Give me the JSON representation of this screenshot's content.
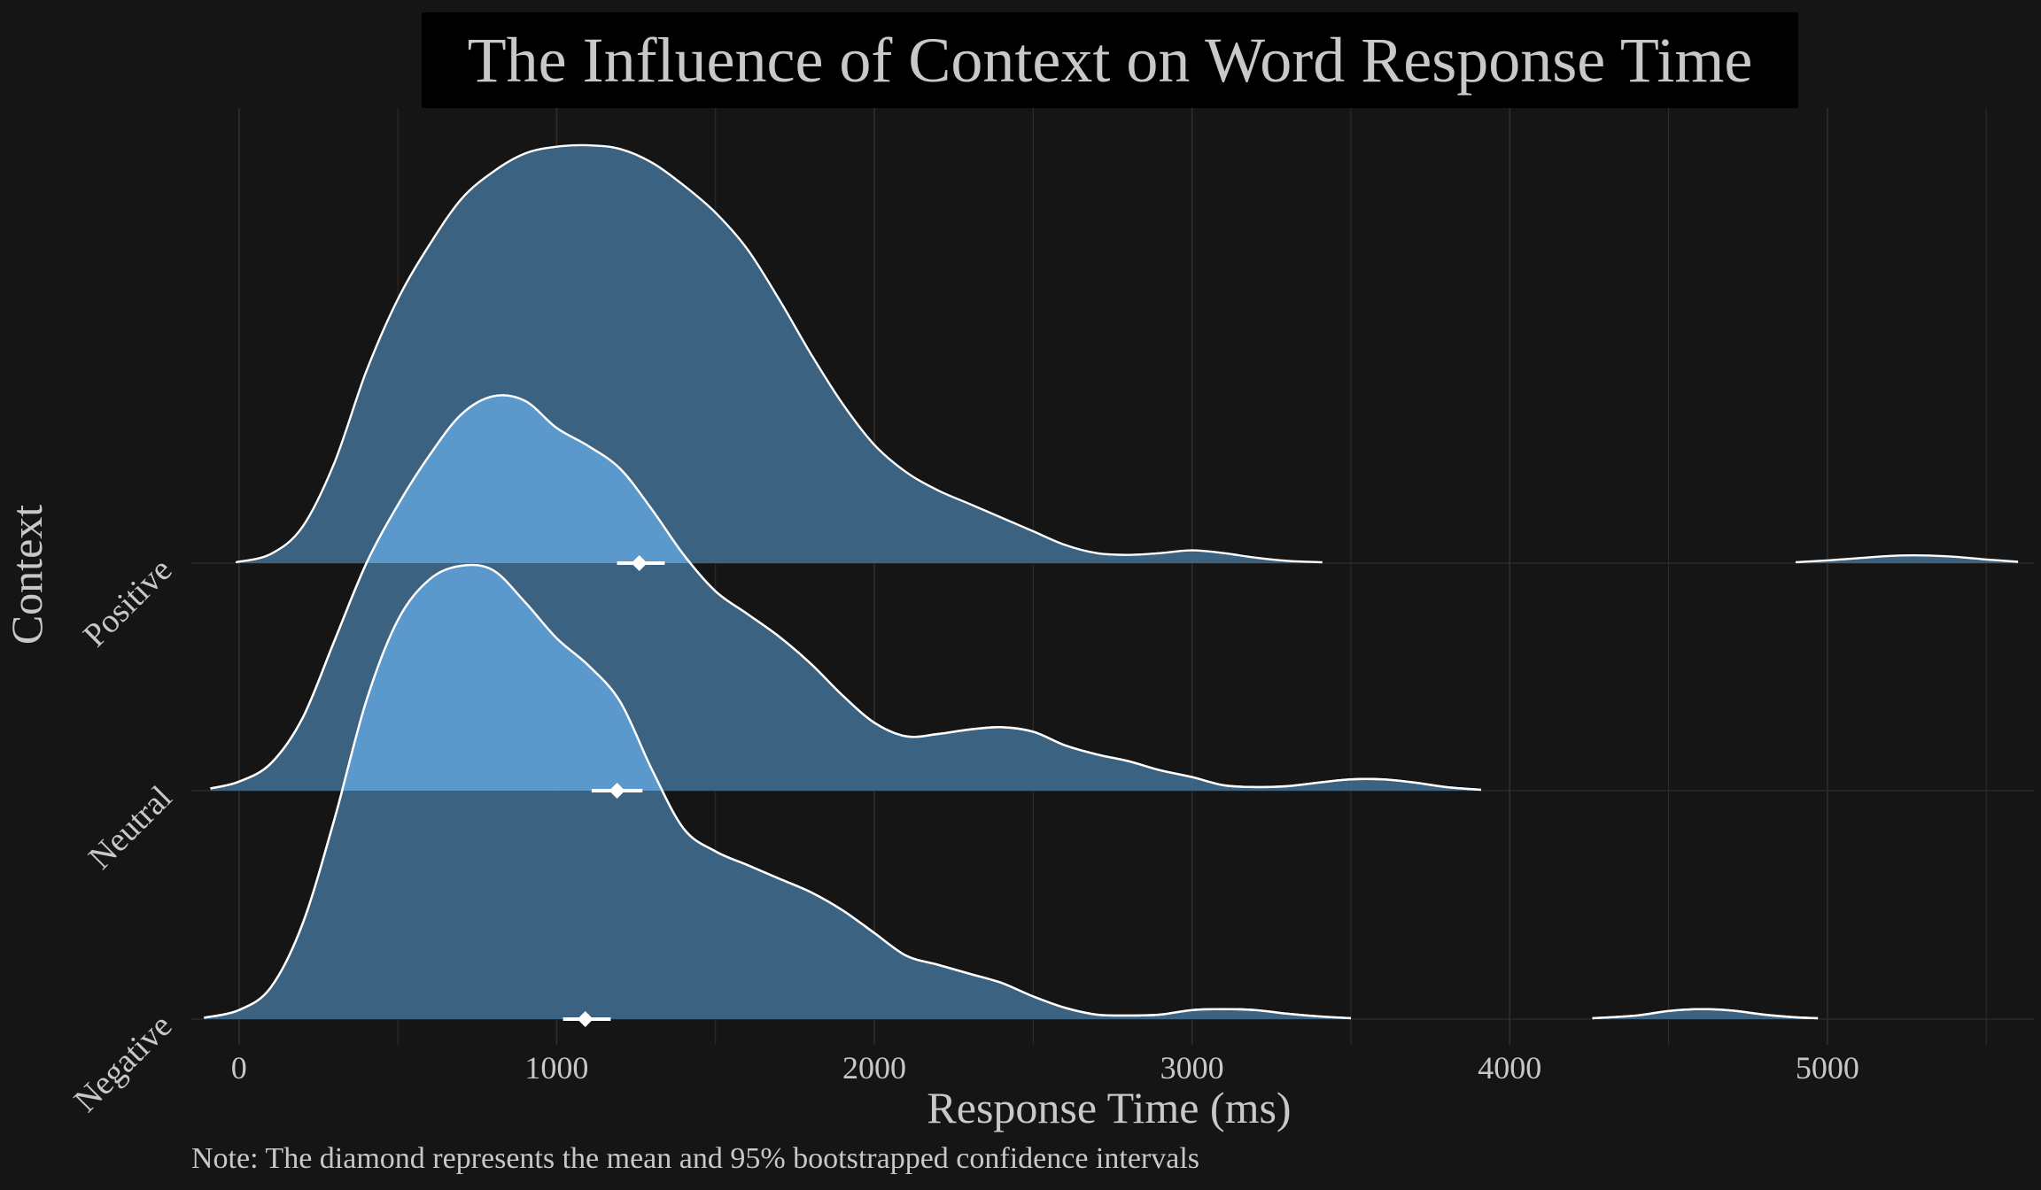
{
  "title": "The Influence of Context on Word Response Time",
  "note": "Note: The diamond represents the mean and 95% bootstrapped confidence intervals",
  "colors": {
    "background": "#151515",
    "title_box": "#000000",
    "text": "#c8c8c8",
    "grid": "#2e2e2e",
    "ridge_dark": "#3f6a8c",
    "ridge_light": "#5b98cc",
    "outline": "#ffffff"
  },
  "chart_data": {
    "type": "ridgeline",
    "title": "The Influence of Context on Word Response Time",
    "xlabel": "Response Time (ms)",
    "ylabel": "Context",
    "xlim": [
      -150,
      5650
    ],
    "x_ticks": [
      0,
      1000,
      2000,
      3000,
      4000,
      5000
    ],
    "grid": true,
    "categories": [
      "Negative",
      "Neutral",
      "Positive"
    ],
    "series": [
      {
        "name": "Negative",
        "fill": "#3f6a8c",
        "mean": 1090,
        "ci": [
          1020,
          1170
        ],
        "density": [
          [
            [
              -110,
              0.003
            ],
            [
              0,
              0.02
            ],
            [
              100,
              0.07
            ],
            [
              200,
              0.21
            ],
            [
              300,
              0.44
            ],
            [
              400,
              0.7
            ],
            [
              500,
              0.88
            ],
            [
              600,
              0.97
            ],
            [
              700,
              1.0
            ],
            [
              800,
              0.99
            ],
            [
              900,
              0.92
            ],
            [
              1000,
              0.84
            ],
            [
              1100,
              0.78
            ],
            [
              1200,
              0.7
            ],
            [
              1300,
              0.55
            ],
            [
              1400,
              0.42
            ],
            [
              1500,
              0.37
            ],
            [
              1600,
              0.34
            ],
            [
              1700,
              0.31
            ],
            [
              1800,
              0.28
            ],
            [
              1900,
              0.24
            ],
            [
              2000,
              0.19
            ],
            [
              2100,
              0.14
            ],
            [
              2200,
              0.12
            ],
            [
              2300,
              0.1
            ],
            [
              2400,
              0.08
            ],
            [
              2500,
              0.05
            ],
            [
              2600,
              0.025
            ],
            [
              2700,
              0.01
            ],
            [
              2800,
              0.008
            ],
            [
              2900,
              0.01
            ],
            [
              3000,
              0.02
            ],
            [
              3100,
              0.022
            ],
            [
              3200,
              0.02
            ],
            [
              3300,
              0.012
            ],
            [
              3400,
              0.006
            ],
            [
              3500,
              0.002
            ]
          ],
          [
            [
              4260,
              0.002
            ],
            [
              4400,
              0.008
            ],
            [
              4500,
              0.018
            ],
            [
              4600,
              0.022
            ],
            [
              4700,
              0.019
            ],
            [
              4800,
              0.01
            ],
            [
              4900,
              0.004
            ],
            [
              4970,
              0.002
            ]
          ]
        ]
      },
      {
        "name": "Neutral",
        "fill": "#3f6a8c",
        "mean": 1190,
        "ci": [
          1110,
          1270
        ],
        "density": [
          [
            [
              -90,
              0.005
            ],
            [
              0,
              0.02
            ],
            [
              100,
              0.06
            ],
            [
              200,
              0.16
            ],
            [
              300,
              0.33
            ],
            [
              400,
              0.5
            ],
            [
              500,
              0.63
            ],
            [
              600,
              0.74
            ],
            [
              700,
              0.83
            ],
            [
              800,
              0.87
            ],
            [
              900,
              0.86
            ],
            [
              1000,
              0.8
            ],
            [
              1100,
              0.76
            ],
            [
              1200,
              0.71
            ],
            [
              1300,
              0.62
            ],
            [
              1400,
              0.52
            ],
            [
              1500,
              0.44
            ],
            [
              1600,
              0.39
            ],
            [
              1700,
              0.34
            ],
            [
              1800,
              0.28
            ],
            [
              1900,
              0.21
            ],
            [
              2000,
              0.15
            ],
            [
              2100,
              0.12
            ],
            [
              2200,
              0.125
            ],
            [
              2300,
              0.135
            ],
            [
              2400,
              0.14
            ],
            [
              2500,
              0.13
            ],
            [
              2600,
              0.1
            ],
            [
              2700,
              0.08
            ],
            [
              2800,
              0.065
            ],
            [
              2900,
              0.045
            ],
            [
              3000,
              0.03
            ],
            [
              3100,
              0.012
            ],
            [
              3200,
              0.008
            ],
            [
              3300,
              0.01
            ],
            [
              3400,
              0.018
            ],
            [
              3500,
              0.025
            ],
            [
              3600,
              0.025
            ],
            [
              3700,
              0.018
            ],
            [
              3800,
              0.008
            ],
            [
              3910,
              0.002
            ]
          ]
        ]
      },
      {
        "name": "Positive",
        "fill": "#3f6a8c",
        "mean": 1260,
        "ci": [
          1190,
          1340
        ],
        "density": [
          [
            [
              -10,
              0.002
            ],
            [
              100,
              0.02
            ],
            [
              200,
              0.08
            ],
            [
              300,
              0.22
            ],
            [
              400,
              0.42
            ],
            [
              500,
              0.58
            ],
            [
              600,
              0.7
            ],
            [
              700,
              0.8
            ],
            [
              800,
              0.86
            ],
            [
              900,
              0.9
            ],
            [
              1000,
              0.915
            ],
            [
              1100,
              0.918
            ],
            [
              1200,
              0.91
            ],
            [
              1300,
              0.88
            ],
            [
              1400,
              0.83
            ],
            [
              1500,
              0.77
            ],
            [
              1600,
              0.69
            ],
            [
              1700,
              0.58
            ],
            [
              1800,
              0.46
            ],
            [
              1900,
              0.35
            ],
            [
              2000,
              0.26
            ],
            [
              2100,
              0.2
            ],
            [
              2200,
              0.16
            ],
            [
              2300,
              0.13
            ],
            [
              2400,
              0.1
            ],
            [
              2500,
              0.07
            ],
            [
              2600,
              0.04
            ],
            [
              2700,
              0.022
            ],
            [
              2800,
              0.018
            ],
            [
              2900,
              0.022
            ],
            [
              3000,
              0.028
            ],
            [
              3100,
              0.022
            ],
            [
              3200,
              0.012
            ],
            [
              3300,
              0.005
            ],
            [
              3410,
              0.002
            ]
          ],
          [
            [
              4900,
              0.002
            ],
            [
              5000,
              0.006
            ],
            [
              5100,
              0.011
            ],
            [
              5200,
              0.016
            ],
            [
              5300,
              0.017
            ],
            [
              5400,
              0.014
            ],
            [
              5500,
              0.008
            ],
            [
              5600,
              0.003
            ]
          ]
        ]
      }
    ]
  }
}
